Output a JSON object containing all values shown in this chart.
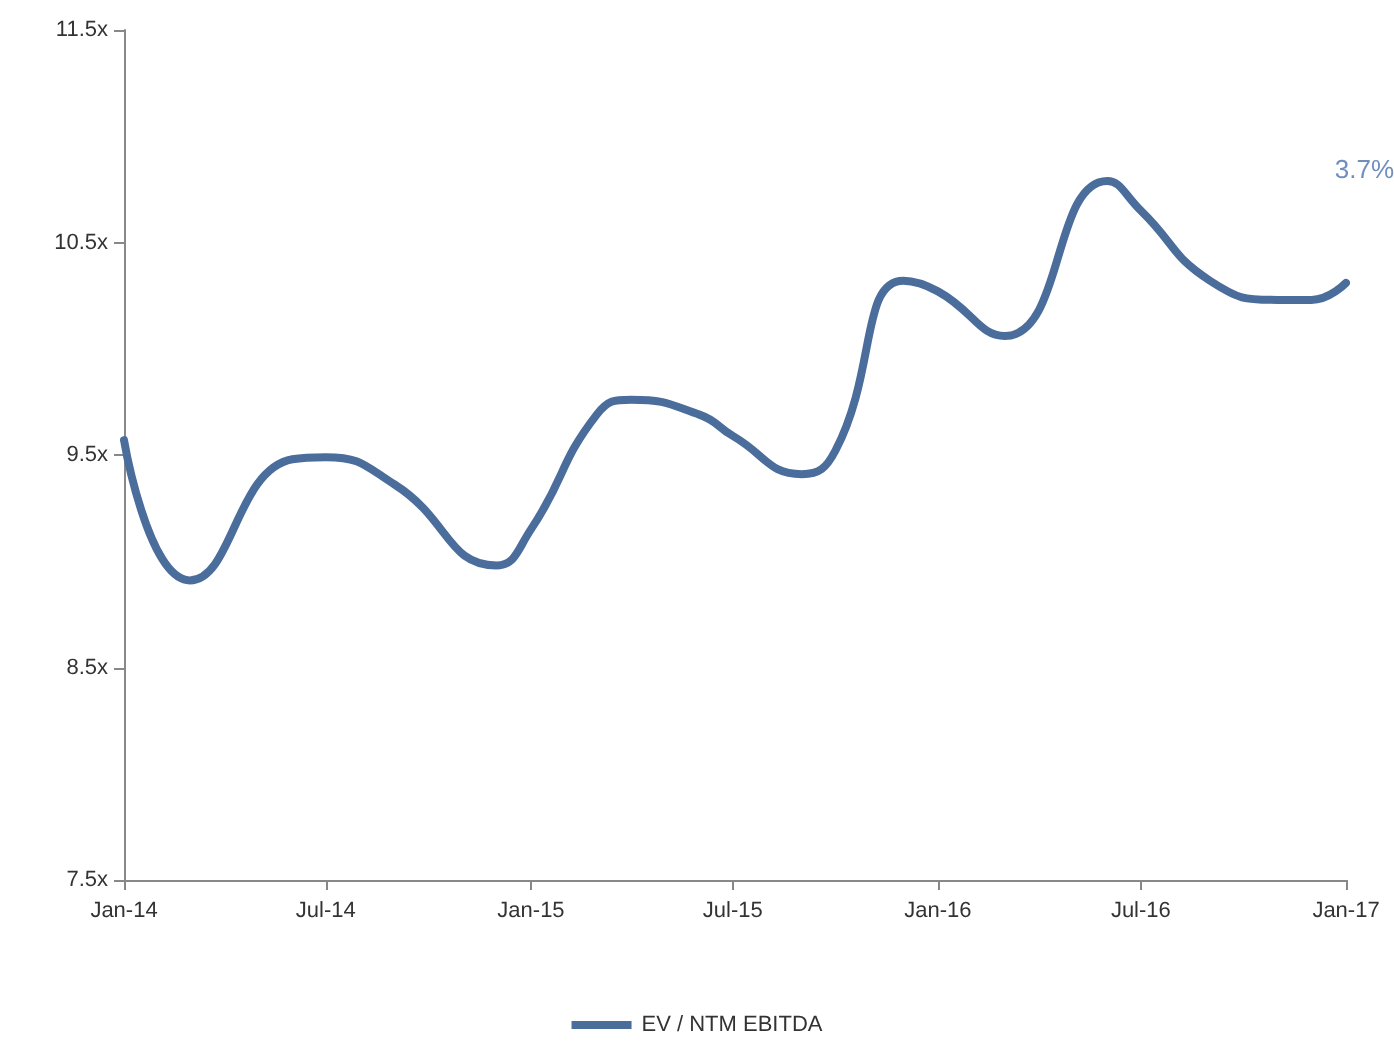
{
  "chart_data": {
    "type": "line",
    "x": [
      "2014-01",
      "2014-03",
      "2014-06",
      "2014-07",
      "2014-09",
      "2014-12",
      "2015-01",
      "2015-03",
      "2015-04",
      "2015-06",
      "2015-07",
      "2015-09",
      "2015-10",
      "2015-12",
      "2016-01",
      "2016-03",
      "2016-06",
      "2016-07",
      "2016-09",
      "2016-11",
      "2016-12",
      "2017-01"
    ],
    "series": [
      {
        "name": "EV / NTM EBITDA",
        "color": "#4a6d9c",
        "values": [
          9.57,
          8.91,
          9.48,
          9.49,
          9.36,
          8.98,
          9.15,
          9.69,
          9.76,
          9.69,
          9.59,
          9.41,
          9.52,
          10.32,
          10.27,
          10.06,
          10.79,
          10.65,
          10.32,
          10.23,
          10.23,
          10.31
        ]
      }
    ],
    "ylim": [
      7.5,
      11.5
    ],
    "yticks": [
      {
        "value": 7.5,
        "label": "7.5x"
      },
      {
        "value": 8.5,
        "label": "8.5x"
      },
      {
        "value": 9.5,
        "label": "9.5x"
      },
      {
        "value": 10.5,
        "label": "10.5x"
      },
      {
        "value": 11.5,
        "label": "11.5x"
      }
    ],
    "xlim": [
      "2014-01",
      "2017-01"
    ],
    "xticks": [
      {
        "value": "2014-01",
        "label": "Jan-14"
      },
      {
        "value": "2014-07",
        "label": "Jul-14"
      },
      {
        "value": "2015-01",
        "label": "Jan-15"
      },
      {
        "value": "2015-07",
        "label": "Jul-15"
      },
      {
        "value": "2016-01",
        "label": "Jan-16"
      },
      {
        "value": "2016-07",
        "label": "Jul-16"
      },
      {
        "value": "2017-01",
        "label": "Jan-17"
      }
    ],
    "annotations": [
      "3.7%"
    ],
    "grid": false,
    "legend": "bottom",
    "marker": "none",
    "line_style": "solid"
  }
}
